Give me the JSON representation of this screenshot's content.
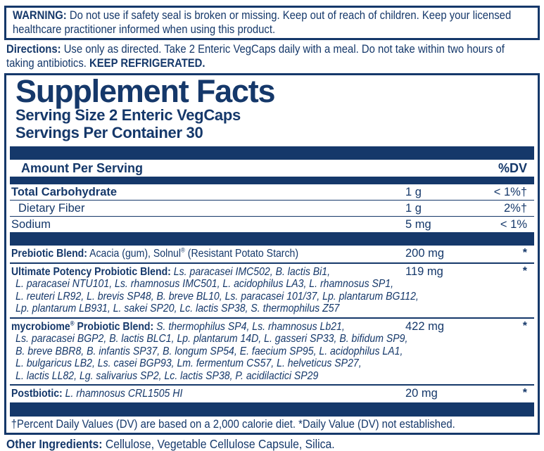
{
  "colors": {
    "navy": "#15386A",
    "background": "#FFFFFF"
  },
  "warning": {
    "label": "WARNING:",
    "line1": "Do not use if safety seal is broken or missing. Keep out of reach of children. Keep your licensed",
    "line2": "healthcare practitioner informed when using this product."
  },
  "directions": {
    "label": "Directions:",
    "line1": "Use only as directed. Take 2 Enteric VegCaps daily with a meal. Do not take within two hours of",
    "line2_text": "taking antibiotics.",
    "line2_bold": "KEEP REFRIGERATED."
  },
  "panel": {
    "title": "Supplement Facts",
    "serving_size": "Serving Size 2 Enteric VegCaps",
    "servings_per_container": "Servings Per Container 30",
    "header": {
      "amount_label": "Amount Per Serving",
      "dv_label": "%DV"
    },
    "nutrients": [
      {
        "name": "Total Carbohydrate",
        "bold": true,
        "indent": false,
        "amount": "1 g",
        "dv": "< 1%†"
      },
      {
        "name": "Dietary Fiber",
        "bold": false,
        "indent": true,
        "amount": "1 g",
        "dv": "2%†"
      },
      {
        "name": "Sodium",
        "bold": false,
        "indent": false,
        "amount": "5 mg",
        "dv": "< 1%"
      }
    ],
    "blends": [
      {
        "label": "Prebiotic Blend:",
        "desc": "Acacia (gum), Solnul® (Resistant Potato Starch)",
        "desc_italic": false,
        "lines": [],
        "amount": "200 mg",
        "dv": "*"
      },
      {
        "label": "Ultimate Potency Probiotic Blend:",
        "desc": "Ls. paracasei IMC502, B. lactis Bi1,",
        "desc_italic": true,
        "lines": [
          "L. paracasei NTU101, Ls. rhamnosus IMC501, L. acidophilus LA3, L. rhamnosus SP1,",
          "L. reuteri LR92, L. brevis SP48, B. breve BL10, Ls. paracasei 101/37, Lp. plantarum BG112,",
          "Lp. plantarum LB931, L. sakei SP20, Lc. lactis SP38, S. thermophilus Z57"
        ],
        "amount": "119 mg",
        "dv": "*"
      },
      {
        "label": "mycrobiome® Probiotic Blend:",
        "desc": "S. thermophilus SP4, Ls. rhamnosus Lb21,",
        "desc_italic": true,
        "lines": [
          "Ls. paracasei BGP2, B. lactis BLC1, Lp. plantarum 14D, L. gasseri SP33, B. bifidum SP9,",
          "B. breve BBR8, B. infantis SP37, B. longum SP54, E. faecium SP95, L. acidophilus LA1,",
          "L. bulgaricus LB2, Ls. casei BGP93, Lm. fermentum CS57, L. helveticus SP27,",
          "L. lactis LL82, Lg. salivarius SP2, Lc. lactis SP38, P. acidilactici SP29"
        ],
        "amount": "422 mg",
        "dv": "*"
      },
      {
        "label": "Postbiotic:",
        "desc": "L. rhamnosus CRL1505 HI",
        "desc_italic": true,
        "lines": [],
        "amount": "20 mg",
        "dv": "*"
      }
    ],
    "footnote": "†Percent Daily Values (DV) are based on a 2,000 calorie diet. *Daily Value (DV) not established."
  },
  "other_ingredients": {
    "label": "Other Ingredients:",
    "text": "Cellulose, Vegetable Cellulose Capsule, Silica."
  }
}
